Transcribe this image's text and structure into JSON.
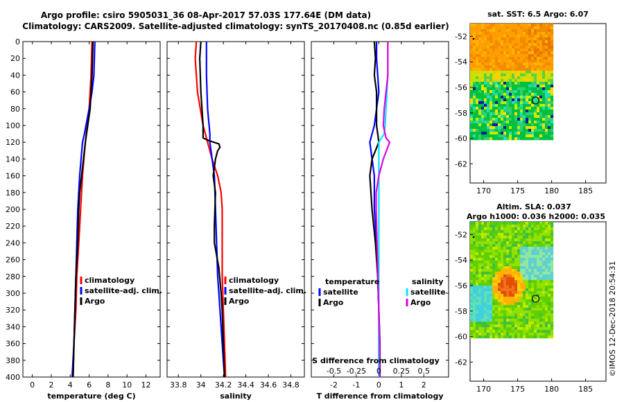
{
  "title_line1": "Argo profile: csiro 5905031_36 08-Apr-2017 57.03S 177.64E (DM data)",
  "title_line2": "Climatology: CARS2009. Satellite-adjusted climatology: synTS_20170408.nc (0.85d earlier)",
  "watermark": "©IMOS 12-Dec-2018 20:54:31",
  "colors": {
    "climatology": "#ff0000",
    "satellite": "#0000ff",
    "argo": "#000000",
    "sal_satellite": "#00e5ff",
    "sal_argo": "#e000e0"
  },
  "depth_ticks": [
    "0",
    "20",
    "40",
    "60",
    "80",
    "100",
    "120",
    "140",
    "160",
    "180",
    "200",
    "220",
    "240",
    "260",
    "280",
    "300",
    "320",
    "340",
    "360",
    "380",
    "400"
  ],
  "chart_data": [
    {
      "type": "line",
      "title": "",
      "xlabel": "temperature (deg C)",
      "ylabel": "",
      "xlim": [
        -1,
        13.5
      ],
      "ylim": [
        400,
        0
      ],
      "xticks": [
        "0",
        "2",
        "4",
        "6",
        "8",
        "10",
        "12"
      ],
      "legend": [
        "climatology",
        "satellite-adj. clim.",
        "Argo"
      ],
      "series": [
        {
          "name": "climatology",
          "color": "red",
          "depth": [
            0,
            40,
            80,
            120,
            160,
            200,
            240,
            280,
            320,
            360,
            400
          ],
          "values": [
            6.3,
            6.2,
            6.0,
            5.6,
            5.3,
            5.1,
            4.9,
            4.7,
            4.6,
            4.4,
            4.3
          ]
        },
        {
          "name": "satellite-adj. clim.",
          "color": "blue",
          "depth": [
            0,
            40,
            60,
            80,
            110,
            120,
            160,
            200,
            240,
            280,
            320,
            360,
            400
          ],
          "values": [
            6.6,
            6.5,
            6.3,
            6.0,
            5.5,
            5.3,
            5.0,
            4.8,
            4.7,
            4.6,
            4.5,
            4.4,
            4.2
          ]
        },
        {
          "name": "Argo",
          "color": "black",
          "depth": [
            0,
            40,
            80,
            120,
            160,
            180,
            200,
            240,
            280,
            320,
            360,
            400
          ],
          "values": [
            6.4,
            6.3,
            6.1,
            5.6,
            5.2,
            5.0,
            4.9,
            4.8,
            4.6,
            4.5,
            4.4,
            4.3
          ]
        }
      ]
    },
    {
      "type": "line",
      "title": "",
      "xlabel": "salinity",
      "ylabel": "",
      "xlim": [
        33.7,
        34.92
      ],
      "ylim": [
        400,
        0
      ],
      "xticks": [
        "33.8",
        "34",
        "34.2",
        "34.4",
        "34.6",
        "34.8"
      ],
      "legend": [
        "climatology",
        "satellite-adj. clim.",
        "Argo"
      ],
      "series": [
        {
          "name": "climatology",
          "color": "red",
          "depth": [
            0,
            20,
            60,
            100,
            120,
            140,
            160,
            180,
            200,
            240,
            280,
            320,
            360,
            400
          ],
          "values": [
            33.96,
            33.95,
            33.97,
            34.02,
            34.06,
            34.1,
            34.15,
            34.18,
            34.19,
            34.19,
            34.19,
            34.2,
            34.21,
            34.22
          ]
        },
        {
          "name": "satellite-adj. clim.",
          "color": "blue",
          "depth": [
            0,
            40,
            80,
            110,
            120,
            140,
            160,
            200,
            240,
            280,
            320,
            360,
            400
          ],
          "values": [
            34.05,
            34.05,
            34.06,
            34.08,
            34.08,
            34.1,
            34.12,
            34.13,
            34.14,
            34.15,
            34.17,
            34.19,
            34.21
          ]
        },
        {
          "name": "Argo",
          "color": "black",
          "depth": [
            0,
            20,
            60,
            100,
            115,
            118,
            122,
            126,
            130,
            140,
            160,
            180,
            220,
            240,
            270,
            300,
            320,
            360,
            400
          ],
          "values": [
            34.0,
            33.99,
            34.0,
            34.02,
            34.02,
            34.07,
            34.16,
            34.17,
            34.15,
            34.13,
            34.11,
            34.13,
            34.12,
            34.12,
            34.16,
            34.18,
            34.19,
            34.2,
            34.21
          ]
        }
      ]
    },
    {
      "type": "line",
      "title": "",
      "xlabel": "T difference from climatology",
      "xlabel_top": "S difference from climatology",
      "ylabel": "",
      "xlim": [
        -3,
        3.1
      ],
      "ylim": [
        400,
        0
      ],
      "xticks": [
        "-2",
        "-1",
        "0",
        "1",
        "2"
      ],
      "xticks_top": [
        "-0.5",
        "-0.25",
        "0",
        "0.25",
        "0.5"
      ],
      "legend_titles": [
        "temperature",
        "salinity"
      ],
      "legend": [
        "satellite",
        "Argo",
        "satellite",
        "Argo"
      ],
      "series": [
        {
          "name": "temperature satellite",
          "color": "blue",
          "depth": [
            0,
            20,
            60,
            100,
            120,
            140,
            160,
            200,
            240,
            280,
            320,
            360,
            400
          ],
          "values": [
            -0.1,
            -0.1,
            0.0,
            -0.2,
            -0.4,
            -0.3,
            -0.2,
            -0.2,
            -0.1,
            -0.05,
            0.0,
            0.0,
            0.0
          ]
        },
        {
          "name": "temperature Argo",
          "color": "black",
          "depth": [
            0,
            20,
            40,
            60,
            80,
            100,
            120,
            140,
            160,
            200,
            240,
            280,
            320,
            360,
            400
          ],
          "values": [
            -0.2,
            -0.15,
            -0.2,
            -0.1,
            -0.1,
            -0.1,
            0.0,
            -0.3,
            -0.4,
            -0.3,
            -0.15,
            -0.05,
            0.0,
            0.05,
            0.05
          ]
        },
        {
          "name": "salinity satellite",
          "color": "cyan",
          "depth": [
            0,
            40,
            80,
            100,
            110,
            120,
            140,
            160,
            200,
            240,
            280,
            320,
            360,
            400
          ],
          "values": [
            0.1,
            0.1,
            0.08,
            0.07,
            0.06,
            0.0,
            0.0,
            0.0,
            0.0,
            0.0,
            0.0,
            0.0,
            0.0,
            0.0
          ]
        },
        {
          "name": "salinity Argo",
          "color": "magenta",
          "depth": [
            0,
            20,
            40,
            60,
            80,
            100,
            115,
            120,
            140,
            160,
            180,
            200,
            240,
            280,
            320,
            360,
            400
          ],
          "values": [
            0.1,
            0.1,
            0.1,
            0.08,
            0.06,
            0.05,
            0.08,
            0.12,
            0.05,
            0.0,
            -0.03,
            -0.03,
            -0.02,
            -0.01,
            0.0,
            0.01,
            0.01
          ]
        }
      ]
    },
    {
      "type": "heatmap",
      "title": "sat. SST: 6.5 Argo: 6.07",
      "xlim": [
        168,
        188
      ],
      "ylim": [
        -63.5,
        -51
      ],
      "xticks": [
        "170",
        "175",
        "180",
        "185"
      ],
      "yticks": [
        "-52",
        "-54",
        "-56",
        "-58",
        "-60",
        "-62"
      ],
      "argo_position": [
        177.64,
        -57.03
      ]
    },
    {
      "type": "heatmap",
      "title": "Altim. SLA: 0.037",
      "subtitle": "Argo h1000: 0.036 h2000: 0.035",
      "xlim": [
        168,
        188
      ],
      "ylim": [
        -63.5,
        -51
      ],
      "xticks": [
        "170",
        "175",
        "180",
        "185"
      ],
      "yticks": [
        "-52",
        "-54",
        "-56",
        "-58",
        "-60",
        "-62"
      ],
      "argo_position": [
        177.64,
        -57.03
      ]
    }
  ]
}
